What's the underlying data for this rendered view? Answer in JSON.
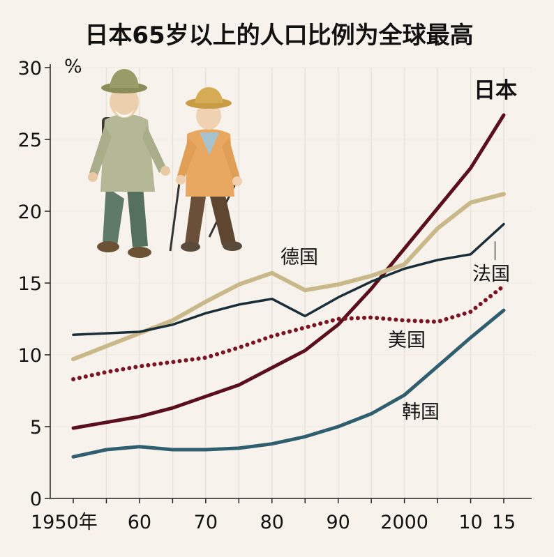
{
  "chart_data": {
    "type": "line",
    "title": "日本65岁以上的人口比例为全球最高",
    "ylabel": "%",
    "ylim": [
      0,
      30
    ],
    "y_ticks": [
      "0",
      "5",
      "10",
      "15",
      "20",
      "25",
      "30"
    ],
    "x_tick_labels": [
      "1950年",
      "60",
      "70",
      "80",
      "90",
      "2000",
      "10",
      "15"
    ],
    "x_tick_values": [
      1950,
      1960,
      1970,
      1980,
      1990,
      2000,
      2010,
      2015
    ],
    "xlim": [
      1950,
      2015
    ],
    "grid": true,
    "legend": "inline labels next to lines",
    "series": [
      {
        "name": "日本",
        "color": "#5a0f1c",
        "style": "solid",
        "x": [
          1950,
          1955,
          1960,
          1965,
          1970,
          1975,
          1980,
          1985,
          1990,
          1995,
          2000,
          2005,
          2010,
          2015
        ],
        "y": [
          4.9,
          5.3,
          5.7,
          6.3,
          7.1,
          7.9,
          9.1,
          10.3,
          12.1,
          14.6,
          17.4,
          20.2,
          23.0,
          26.7
        ]
      },
      {
        "name": "德国",
        "color": "#c9b98a",
        "style": "solid",
        "x": [
          1950,
          1955,
          1960,
          1965,
          1970,
          1975,
          1980,
          1985,
          1990,
          1995,
          2000,
          2005,
          2010,
          2015
        ],
        "y": [
          9.7,
          10.6,
          11.5,
          12.4,
          13.7,
          14.9,
          15.7,
          14.5,
          14.9,
          15.5,
          16.3,
          18.8,
          20.6,
          21.2
        ]
      },
      {
        "name": "法国",
        "color": "#1a2e3a",
        "style": "solid",
        "x": [
          1950,
          1955,
          1960,
          1965,
          1970,
          1975,
          1980,
          1985,
          1990,
          1995,
          2000,
          2005,
          2010,
          2015
        ],
        "y": [
          11.4,
          11.5,
          11.6,
          12.1,
          12.9,
          13.5,
          13.9,
          12.7,
          14.0,
          15.1,
          16.0,
          16.6,
          17.0,
          19.1
        ]
      },
      {
        "name": "美国",
        "color": "#7a1424",
        "style": "dotted",
        "x": [
          1950,
          1955,
          1960,
          1965,
          1970,
          1975,
          1980,
          1985,
          1990,
          1995,
          2000,
          2005,
          2010,
          2015
        ],
        "y": [
          8.3,
          8.8,
          9.2,
          9.5,
          9.8,
          10.5,
          11.3,
          11.9,
          12.5,
          12.6,
          12.4,
          12.3,
          13.0,
          14.8
        ]
      },
      {
        "name": "韩国",
        "color": "#2f5f6e",
        "style": "solid",
        "x": [
          1950,
          1955,
          1960,
          1965,
          1970,
          1975,
          1980,
          1985,
          1990,
          1995,
          2000,
          2005,
          2010,
          2015
        ],
        "y": [
          2.9,
          3.4,
          3.6,
          3.4,
          3.4,
          3.5,
          3.8,
          4.3,
          5.0,
          5.9,
          7.2,
          9.2,
          11.2,
          13.1
        ]
      }
    ]
  },
  "illustration": {
    "description_icon": "elderly-hikers-illustration"
  }
}
